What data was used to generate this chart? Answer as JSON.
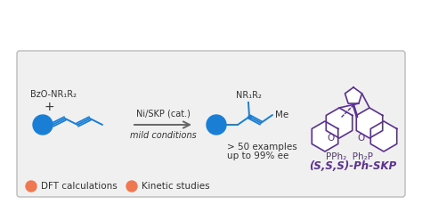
{
  "bg_color": "#f0f0f0",
  "outer_bg": "#ffffff",
  "box_edge_color": "#bbbbbb",
  "blue_dot_color": "#1a7fd4",
  "orange_dot_color": "#f07850",
  "diene_color": "#1a7fd4",
  "catalyst_color": "#5a3090",
  "arrow_color": "#666666",
  "text_color": "#333333",
  "catalyst_label": "Ni/SKP (cat.)",
  "conditions_label": "mild conditions",
  "plus_label": "+",
  "reagent_label": "BzO-NR₁R₂",
  "product_label1": "> 50 examples",
  "product_label2": "up to 99% ee",
  "nr1r2_label": "NR₁R₂",
  "me_label": "Me",
  "ligand_name": "(S,S,S)-Ph-SKP",
  "ligand_pph2": "PPh₂  Ph₂P",
  "legend1": "DFT calculations",
  "legend2": "Kinetic studies",
  "figsize": [
    4.74,
    2.48
  ],
  "dpi": 100
}
